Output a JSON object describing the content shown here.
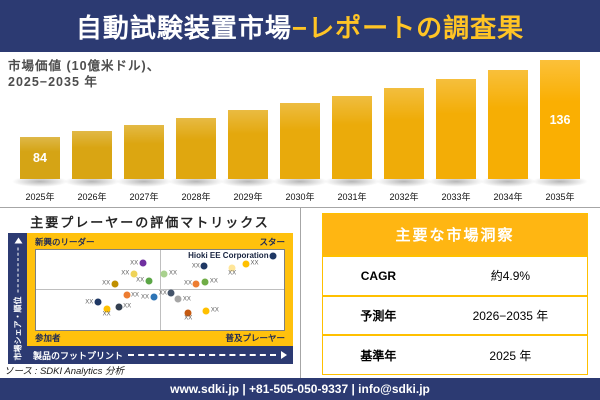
{
  "header": {
    "title_white": "自動試験装置市場",
    "title_gold": "−レポートの調査果"
  },
  "chart_data": [
    {
      "type": "bar",
      "title": "市場価値 (10億米ドル)、2025−2035年",
      "subtitle_line1": "市場価値 (10億米ドル)、",
      "subtitle_line2": "2025−2035 年",
      "categories": [
        "2025年",
        "2026年",
        "2027年",
        "2028年",
        "2029年",
        "2030年",
        "2031年",
        "2032年",
        "2033年",
        "2034年",
        "2035年"
      ],
      "values": [
        84,
        88,
        92,
        97,
        102,
        107,
        112,
        117,
        123,
        129,
        136
      ],
      "value_labels": {
        "0": "84",
        "10": "136"
      },
      "ylabel": "10億米ドル",
      "bar_color_start": "#D5A415",
      "bar_color_end": "#FAAF02"
    },
    {
      "type": "scatter",
      "title": "主要プレーヤーの評価マトリックス",
      "xlabel": "製品のフットプリント",
      "ylabel": "市場シェア・順位",
      "quadrant_labels": {
        "top_left": "新興のリーダー",
        "top_right": "スター",
        "bottom_left": "参加者",
        "bottom_right": "普及プレーヤー"
      },
      "points": [
        {
          "x": 43.0,
          "y": 16.5,
          "color": "#7030A0",
          "label": "XX",
          "side": "left"
        },
        {
          "x": 39.4,
          "y": 29.8,
          "color": "#EFD358",
          "label": "XX",
          "side": "left"
        },
        {
          "x": 31.7,
          "y": 42.2,
          "color": "#BF8F00",
          "label": "XX",
          "side": "left"
        },
        {
          "x": 45.4,
          "y": 38.6,
          "color": "#5BA646",
          "label": "XX",
          "side": "left"
        },
        {
          "x": 51.8,
          "y": 29.8,
          "color": "#A9D18E",
          "label": "XX",
          "side": "right"
        },
        {
          "x": 67.9,
          "y": 20.5,
          "color": "#1F3864",
          "label": "XX",
          "side": "left"
        },
        {
          "x": 79.1,
          "y": 22.9,
          "color": "#FFE699",
          "label": "XX",
          "side": "below"
        },
        {
          "x": 84.7,
          "y": 16.9,
          "color": "#FFC000",
          "label": "XX",
          "side": "right"
        },
        {
          "x": 95.6,
          "y": 7.2,
          "color": "#1F3864",
          "label": "Hioki EE Corporation",
          "side": "left",
          "emphasis": true
        },
        {
          "x": 64.7,
          "y": 42.2,
          "color": "#ED7D31",
          "label": "XX",
          "side": "left"
        },
        {
          "x": 68.3,
          "y": 39.8,
          "color": "#70AD47",
          "label": "XX",
          "side": "right"
        },
        {
          "x": 36.5,
          "y": 56.6,
          "color": "#ED7D31",
          "label": "XX",
          "side": "right"
        },
        {
          "x": 47.4,
          "y": 59.0,
          "color": "#2E75B6",
          "label": "XX",
          "side": "left"
        },
        {
          "x": 24.9,
          "y": 65.1,
          "color": "#1F3864",
          "label": "XX",
          "side": "left"
        },
        {
          "x": 33.3,
          "y": 71.1,
          "color": "#333F50",
          "label": "XX",
          "side": "right"
        },
        {
          "x": 28.5,
          "y": 73.5,
          "color": "#FFC000",
          "label": "XX",
          "side": "below"
        },
        {
          "x": 54.6,
          "y": 54.2,
          "color": "#44546A",
          "label": "XX",
          "side": "left"
        },
        {
          "x": 57.4,
          "y": 61.4,
          "color": "#A6A6A6",
          "label": "XX",
          "side": "right"
        },
        {
          "x": 61.4,
          "y": 78.3,
          "color": "#C55A11",
          "label": "XX",
          "side": "below"
        },
        {
          "x": 68.7,
          "y": 75.9,
          "color": "#FFC000",
          "label": "XX",
          "side": "right"
        }
      ]
    },
    {
      "type": "table",
      "title": "主要な市場洞察",
      "rows": [
        {
          "label": "CAGR",
          "value": "約4.9%"
        },
        {
          "label": "予測年",
          "value": "2026−2035 年"
        },
        {
          "label": "基準年",
          "value": "2025 年"
        }
      ]
    }
  ],
  "source": {
    "text": "ソース : SDKI Analytics 分析"
  },
  "footer": {
    "text": "www.sdki.jp | +81-505-050-9337 | info@sdki.jp"
  },
  "colors": {
    "navy": "#2C3A72",
    "gold_band": "#FFC10D",
    "gold_header": "#FFB612",
    "title_gold": "#FFC425"
  }
}
